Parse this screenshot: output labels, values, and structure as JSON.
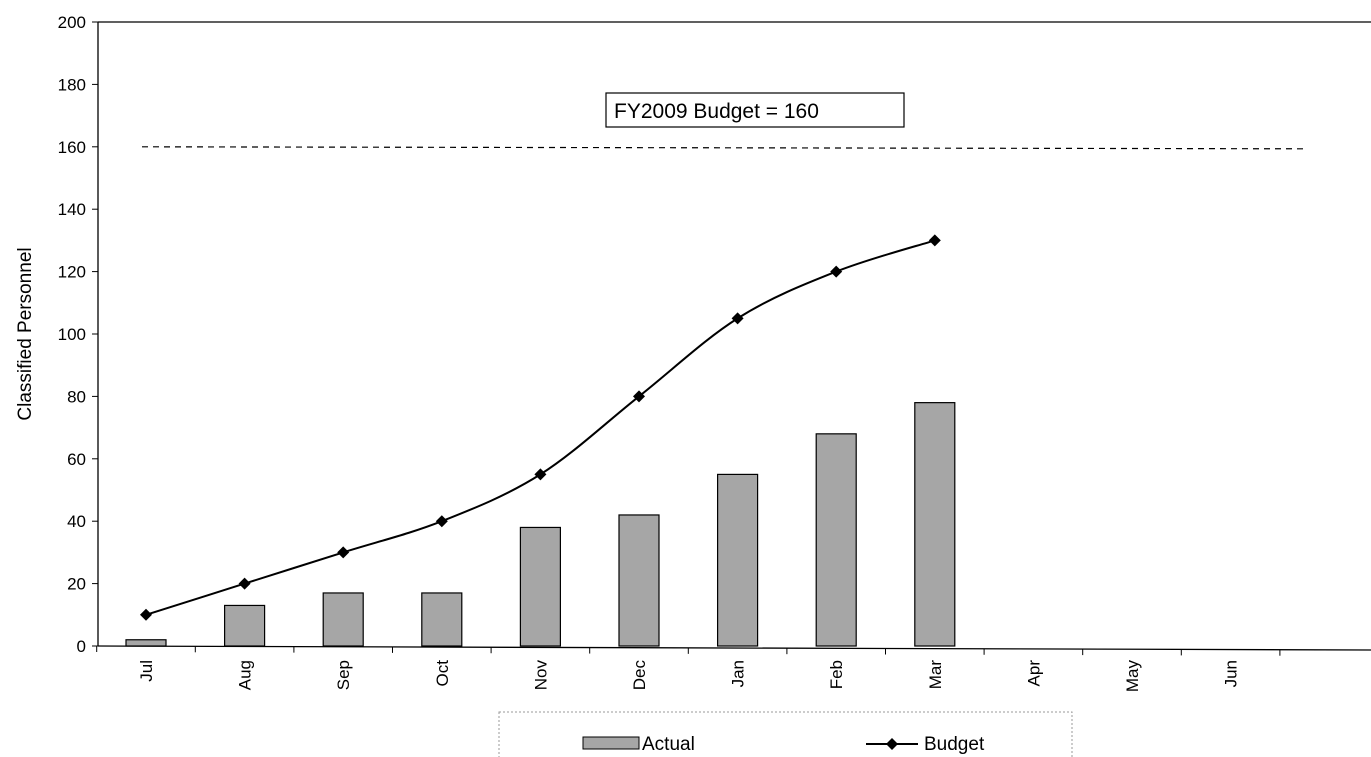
{
  "chart_data": {
    "type": "bar",
    "categories": [
      "Jul",
      "Aug",
      "Sep",
      "Oct",
      "Nov",
      "Dec",
      "Jan",
      "Feb",
      "Mar",
      "Apr",
      "May",
      "Jun"
    ],
    "series": [
      {
        "name": "Actual",
        "type": "bar",
        "values": [
          2,
          13,
          17,
          17,
          38,
          42,
          55,
          68,
          78,
          null,
          null,
          null
        ],
        "color": "#a6a6a6"
      },
      {
        "name": "Budget",
        "type": "line",
        "marker": "diamond",
        "values": [
          10,
          20,
          30,
          40,
          55,
          80,
          105,
          120,
          130,
          null,
          null,
          null
        ],
        "color": "#000000"
      }
    ],
    "reference_line": {
      "value": 160,
      "style": "dashed"
    },
    "annotation": "FY2009 Budget = 160",
    "ylabel": "Classified Personnel",
    "xlabel": "",
    "ylim": [
      0,
      200
    ],
    "yticks": [
      0,
      20,
      40,
      60,
      80,
      100,
      120,
      140,
      160,
      180,
      200
    ],
    "grid": false,
    "legend_position": "bottom"
  }
}
